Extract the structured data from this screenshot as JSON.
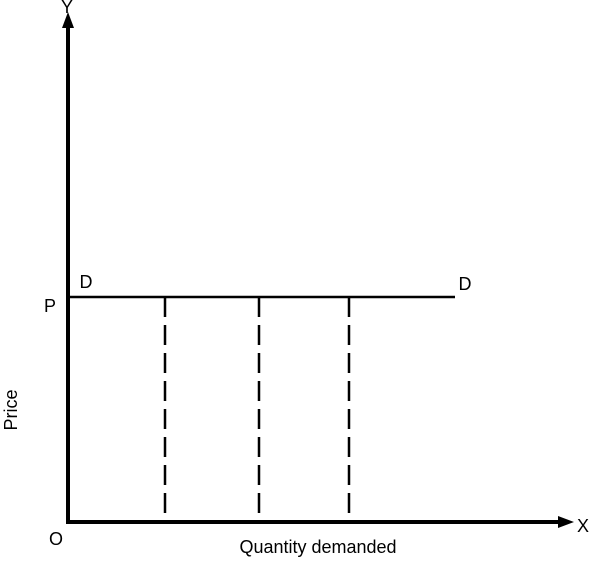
{
  "axes": {
    "y_label": "Y",
    "x_label": "X",
    "origin": "O",
    "y_title": "Price",
    "x_title": "Quantity demanded"
  },
  "curve": {
    "price_label": "P",
    "left_label": "D",
    "right_label": "D"
  }
}
